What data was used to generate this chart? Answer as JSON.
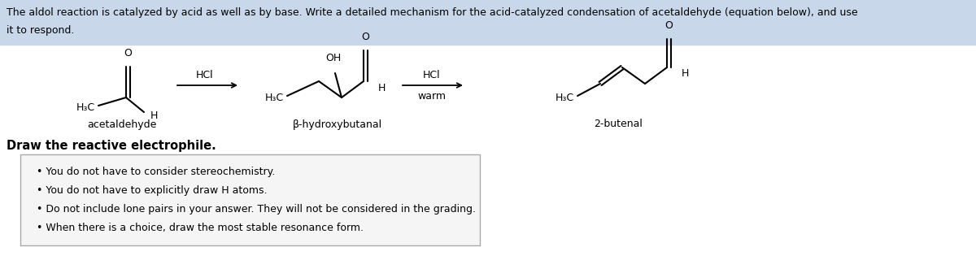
{
  "background_color": "#ffffff",
  "header_bg_color": "#c8d8ea",
  "header_line1": "The aldol reaction is catalyzed by acid as well as by base. Write a detailed mechanism for the acid-catalyzed condensation of acetaldehyde (equation below), and use",
  "header_line2": "it to respond.",
  "header_fontsize": 9.0,
  "bold_label": "Draw the reactive electrophile.",
  "bold_label_fontsize": 10.5,
  "bullet_points": [
    "You do not have to consider stereochemistry.",
    "You do not have to explicitly draw H atoms.",
    "Do not include lone pairs in your answer. They will not be considered in the grading.",
    "When there is a choice, draw the most stable resonance form."
  ],
  "bullet_fontsize": 9.0,
  "label_fontsize": 9.0,
  "struct_fontsize": 9.0,
  "label1_text": "acetaldehyde",
  "label2_text": "β-hydroxybutanal",
  "label3_text": "2-butenal"
}
